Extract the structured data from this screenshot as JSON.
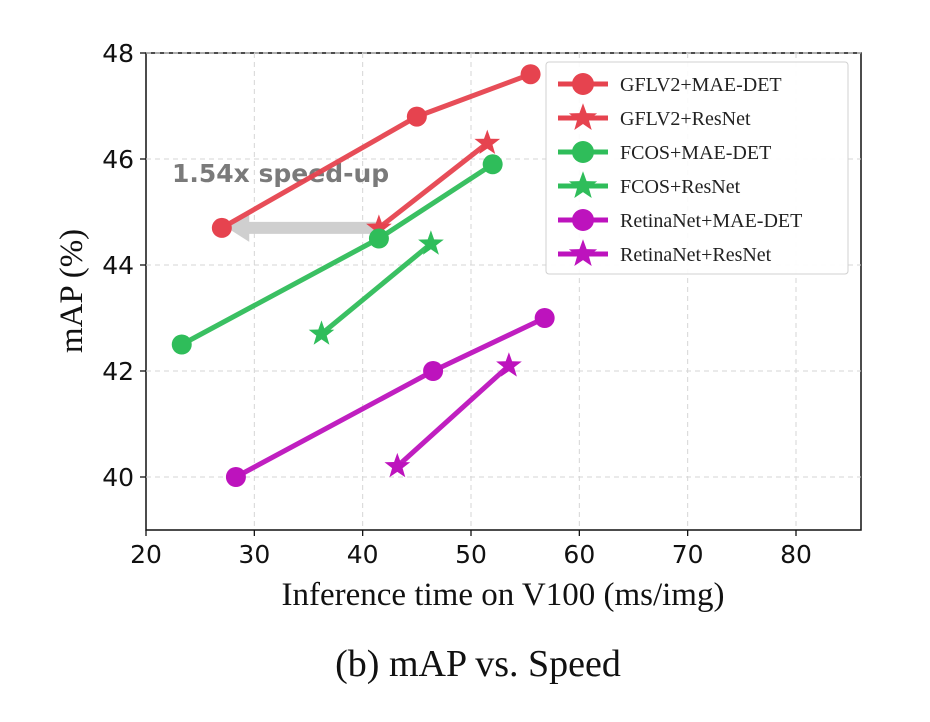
{
  "chart_data": {
    "type": "line",
    "title": "",
    "caption": "(b) mAP vs. Speed",
    "xlabel": "Inference time on V100 (ms/img)",
    "ylabel": "mAP (%)",
    "xlim": [
      20,
      86
    ],
    "ylim": [
      39,
      48
    ],
    "xticks": [
      20,
      30,
      40,
      50,
      60,
      70,
      80
    ],
    "yticks": [
      40,
      42,
      44,
      46,
      48
    ],
    "grid": true,
    "legend_position": "top-right",
    "annotation": {
      "text": "1.54x speed-up",
      "arrow_from": [
        41.5,
        44.7
      ],
      "arrow_to": [
        27.5,
        44.7
      ]
    },
    "series": [
      {
        "name": "GFLV2+MAE-DET",
        "color": "#e6434f",
        "marker": "circle",
        "x": [
          27,
          45,
          55.5
        ],
        "y": [
          44.7,
          46.8,
          47.6
        ]
      },
      {
        "name": "GFLV2+ResNet",
        "color": "#e6434f",
        "marker": "star",
        "x": [
          41.5,
          51.5
        ],
        "y": [
          44.7,
          46.3
        ]
      },
      {
        "name": "FCOS+MAE-DET",
        "color": "#2fbd5a",
        "marker": "circle",
        "x": [
          23.3,
          41.5,
          52
        ],
        "y": [
          42.5,
          44.5,
          45.9
        ]
      },
      {
        "name": "FCOS+ResNet",
        "color": "#2fbd5a",
        "marker": "star",
        "x": [
          36.2,
          46.3
        ],
        "y": [
          42.7,
          44.4
        ]
      },
      {
        "name": "RetinaNet+MAE-DET",
        "color": "#bd13bd",
        "marker": "circle",
        "x": [
          28.3,
          46.5,
          56.8
        ],
        "y": [
          40.0,
          42.0,
          43.0
        ]
      },
      {
        "name": "RetinaNet+ResNet",
        "color": "#bd13bd",
        "marker": "star",
        "x": [
          43.2,
          53.5
        ],
        "y": [
          40.2,
          42.1
        ]
      }
    ]
  }
}
